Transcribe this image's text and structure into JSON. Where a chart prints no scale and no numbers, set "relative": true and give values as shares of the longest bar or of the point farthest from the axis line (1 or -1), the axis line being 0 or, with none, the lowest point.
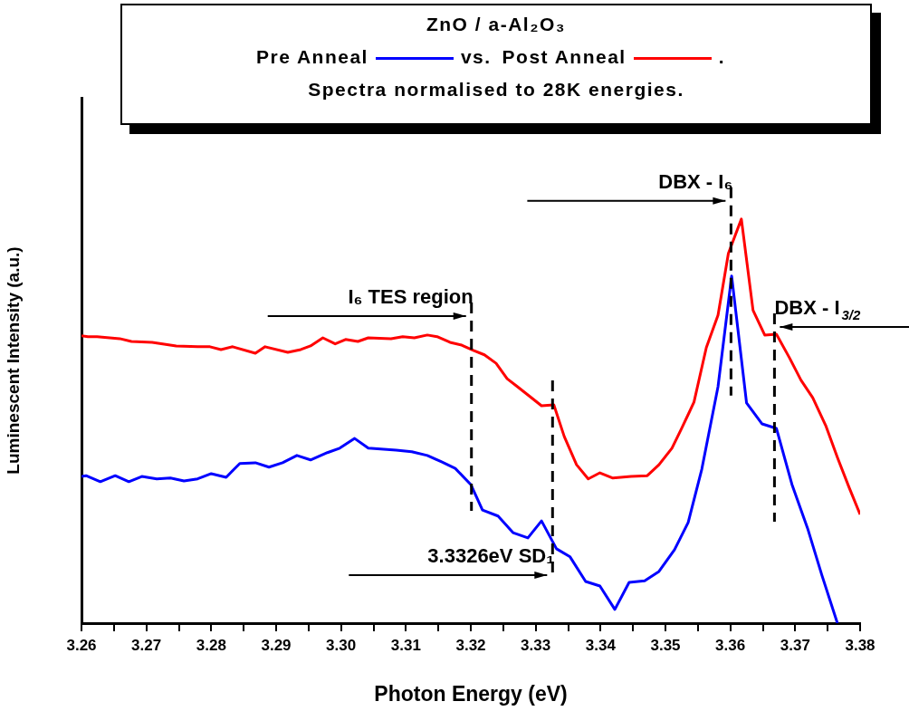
{
  "chart_data": {
    "type": "line",
    "title": "ZnO / a-Al₂O₃",
    "subtitle": "Spectra normalised to 28K energies.",
    "xlabel": "Photon Energy (eV)",
    "ylabel": "Luminescent Intensity (a.u.)",
    "relative": true,
    "legend": "top",
    "line_style": "solid",
    "xlim": [
      3.26,
      3.38
    ],
    "xticks": [
      3.26,
      {
        "value": 3.265,
        "label": null
      },
      3.27,
      {
        "value": 3.275,
        "label": null
      },
      3.28,
      {
        "value": 3.285,
        "label": null
      },
      3.29,
      {
        "value": 3.295,
        "label": null
      },
      {
        "value": 3.3,
        "label": "3.30"
      },
      {
        "value": 3.305,
        "label": null
      },
      3.31,
      {
        "value": 3.315,
        "label": null
      },
      3.32,
      {
        "value": 3.325,
        "label": null
      },
      3.33,
      {
        "value": 3.335,
        "label": null
      },
      3.34,
      {
        "value": 3.345,
        "label": null
      },
      3.35,
      {
        "value": 3.355,
        "label": null
      },
      3.36,
      {
        "value": 3.365,
        "label": null
      },
      3.37,
      {
        "value": 3.375,
        "label": null
      },
      3.38
    ],
    "series": [
      {
        "name": "Pre Anneal",
        "color": "#0000ff",
        "x": [
          3.26,
          3.2607,
          3.2629,
          3.2652,
          3.2673,
          3.2693,
          3.2716,
          3.2737,
          3.2758,
          3.2779,
          3.28,
          3.2823,
          3.2844,
          3.2868,
          3.2889,
          3.291,
          3.2932,
          3.2953,
          3.2979,
          3.2998,
          3.3021,
          3.3042,
          3.3085,
          3.3109,
          3.3133,
          3.3155,
          3.3176,
          3.32,
          3.3218,
          3.3242,
          3.3265,
          3.3288,
          3.3309,
          3.3332,
          3.3353,
          3.3377,
          3.3399,
          3.3422,
          3.3444,
          3.3468,
          3.349,
          3.3514,
          3.3535,
          3.3556,
          3.3581,
          3.3602,
          3.3625,
          3.3649,
          3.3671,
          3.3695,
          3.3719,
          3.3741,
          3.3765
        ],
        "values": [
          0.363,
          0.365,
          0.35,
          0.365,
          0.35,
          0.363,
          0.357,
          0.359,
          0.352,
          0.357,
          0.37,
          0.361,
          0.395,
          0.397,
          0.386,
          0.397,
          0.415,
          0.404,
          0.422,
          0.433,
          0.457,
          0.433,
          0.428,
          0.424,
          0.415,
          0.399,
          0.383,
          0.343,
          0.28,
          0.265,
          0.224,
          0.211,
          0.253,
          0.184,
          0.164,
          0.103,
          0.092,
          0.034,
          0.101,
          0.105,
          0.128,
          0.182,
          0.249,
          0.381,
          0.585,
          0.859,
          0.545,
          0.493,
          0.482,
          0.343,
          0.235,
          0.119,
          0.0
        ]
      },
      {
        "name": "Post Anneal",
        "color": "#ff0000",
        "x": [
          3.26,
          3.261,
          3.2624,
          3.2659,
          3.2677,
          3.2709,
          3.2746,
          3.2779,
          3.2798,
          3.2815,
          3.2833,
          3.2868,
          3.2883,
          3.2918,
          3.2938,
          3.2953,
          3.2972,
          3.2991,
          3.3007,
          3.3026,
          3.3042,
          3.3077,
          3.3095,
          3.3113,
          3.3133,
          3.3148,
          3.3168,
          3.3186,
          3.3204,
          3.3221,
          3.3239,
          3.3256,
          3.3272,
          3.3291,
          3.3309,
          3.3328,
          3.3344,
          3.3363,
          3.3381,
          3.3399,
          3.3419,
          3.3447,
          3.3472,
          3.349,
          3.351,
          3.3525,
          3.3544,
          3.3563,
          3.3581,
          3.3597,
          3.3617,
          3.3635,
          3.3653,
          3.3671,
          3.3691,
          3.3709,
          3.3727,
          3.3747,
          3.3765,
          3.3783,
          3.38
        ],
        "values": [
          0.711,
          0.709,
          0.709,
          0.704,
          0.697,
          0.695,
          0.686,
          0.684,
          0.684,
          0.677,
          0.684,
          0.668,
          0.684,
          0.67,
          0.677,
          0.686,
          0.706,
          0.691,
          0.702,
          0.697,
          0.706,
          0.704,
          0.709,
          0.706,
          0.713,
          0.709,
          0.695,
          0.688,
          0.675,
          0.664,
          0.643,
          0.605,
          0.585,
          0.561,
          0.538,
          0.54,
          0.462,
          0.392,
          0.357,
          0.372,
          0.359,
          0.363,
          0.365,
          0.392,
          0.433,
          0.482,
          0.547,
          0.682,
          0.762,
          0.915,
          1,
          0.774,
          0.713,
          0.715,
          0.657,
          0.601,
          0.558,
          0.489,
          0.41,
          0.336,
          0.269
        ]
      }
    ],
    "ref_lines": [
      {
        "axis": "x",
        "value": 3.3201,
        "line_style": "dashed"
      },
      {
        "axis": "x",
        "value": 3.3326,
        "line_style": "dashed"
      },
      {
        "axis": "x",
        "value": 3.3601,
        "line_style": "dashed"
      },
      {
        "axis": "x",
        "value": 3.3668,
        "line_style": "dashed"
      }
    ],
    "annotations": [
      {
        "text": "I₆ TES region",
        "x": 3.3201,
        "y": 0.76
      },
      {
        "text": "3.3326eV SD₁",
        "x": 3.3326,
        "y": 0.119
      },
      {
        "text": "DBX - I₆",
        "x": 3.3601,
        "y": 1.045
      },
      {
        "text": "DBX - I$_{3/2}$",
        "x": 3.3668,
        "y": 0.733
      },
      "vs.",
      "."
    ]
  }
}
